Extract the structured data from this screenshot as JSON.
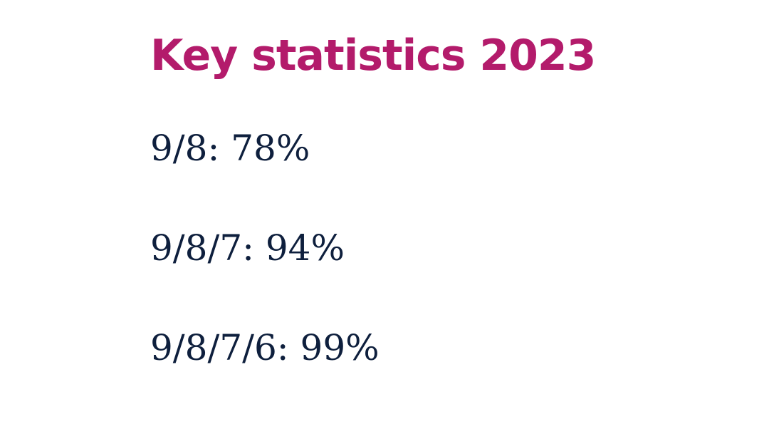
{
  "colors": {
    "title": "#b31b6b",
    "body_text": "#0e1f3d",
    "background": "#ffffff"
  },
  "slide": {
    "title": "Key statistics 2023",
    "stats": [
      "9/8: 78%",
      "9/8/7: 94%",
      "9/8/7/6: 99%"
    ]
  }
}
